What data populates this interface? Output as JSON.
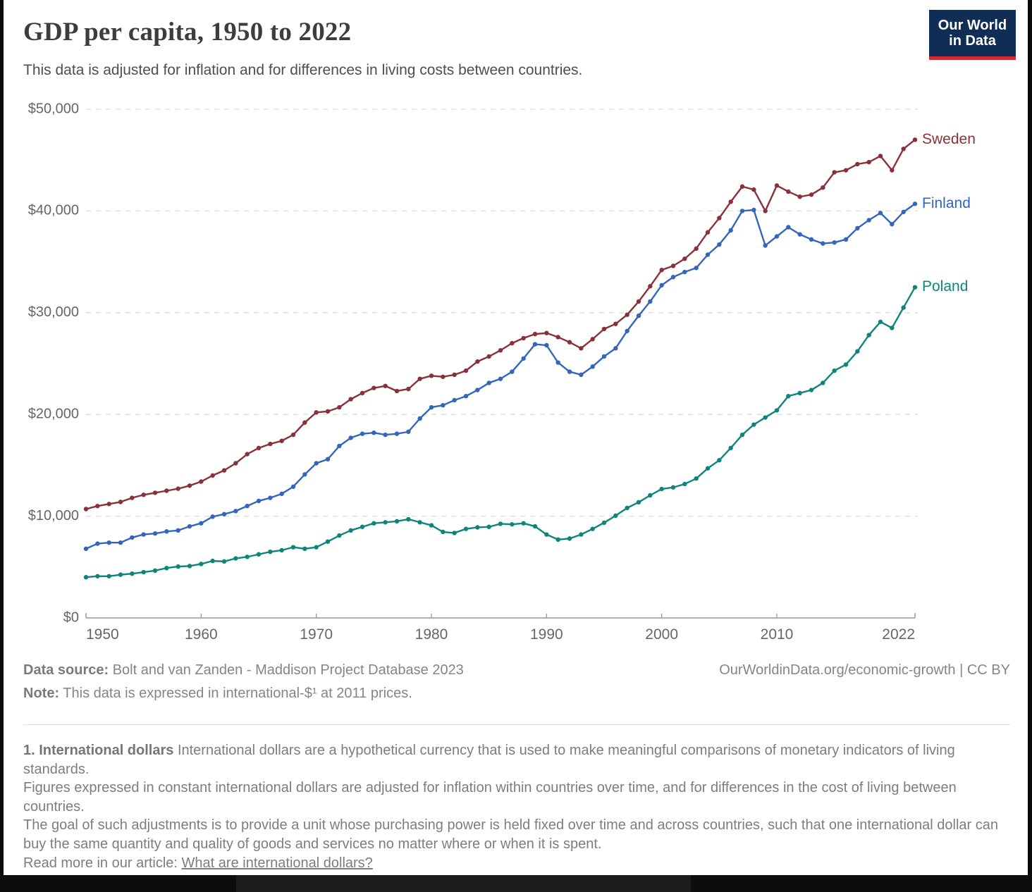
{
  "header": {
    "title": "GDP per capita, 1950 to 2022",
    "subtitle": "This data is adjusted for inflation and for differences in living costs between countries.",
    "logo": {
      "line1": "Our World",
      "line2": "in Data"
    }
  },
  "chart_data": {
    "type": "line",
    "title": "GDP per capita, 1950 to 2022",
    "xlabel": "",
    "ylabel": "",
    "ylim": [
      0,
      50000
    ],
    "xlim": [
      1950,
      2022
    ],
    "grid": "horizontal-dashed",
    "legend_position": "right-end-of-line",
    "x_ticks": [
      {
        "value": 1950,
        "label": "1950"
      },
      {
        "value": 1960,
        "label": "1960"
      },
      {
        "value": 1970,
        "label": "1970"
      },
      {
        "value": 1980,
        "label": "1980"
      },
      {
        "value": 1990,
        "label": "1990"
      },
      {
        "value": 2000,
        "label": "2000"
      },
      {
        "value": 2010,
        "label": "2010"
      },
      {
        "value": 2022,
        "label": "2022"
      }
    ],
    "y_ticks": [
      {
        "value": 0,
        "label": "$0"
      },
      {
        "value": 10000,
        "label": "$10,000"
      },
      {
        "value": 20000,
        "label": "$20,000"
      },
      {
        "value": 30000,
        "label": "$30,000"
      },
      {
        "value": 40000,
        "label": "$40,000"
      },
      {
        "value": 50000,
        "label": "$50,000"
      }
    ],
    "years": [
      1950,
      1951,
      1952,
      1953,
      1954,
      1955,
      1956,
      1957,
      1958,
      1959,
      1960,
      1961,
      1962,
      1963,
      1964,
      1965,
      1966,
      1967,
      1968,
      1969,
      1970,
      1971,
      1972,
      1973,
      1974,
      1975,
      1976,
      1977,
      1978,
      1979,
      1980,
      1981,
      1982,
      1983,
      1984,
      1985,
      1986,
      1987,
      1988,
      1989,
      1990,
      1991,
      1992,
      1993,
      1994,
      1995,
      1996,
      1997,
      1998,
      1999,
      2000,
      2001,
      2002,
      2003,
      2004,
      2005,
      2006,
      2007,
      2008,
      2009,
      2010,
      2011,
      2012,
      2013,
      2014,
      2015,
      2016,
      2017,
      2018,
      2019,
      2020,
      2021,
      2022
    ],
    "series": [
      {
        "name": "Sweden",
        "color": "#8b3039",
        "values": [
          10700,
          11000,
          11200,
          11400,
          11800,
          12100,
          12300,
          12500,
          12700,
          13000,
          13400,
          14000,
          14500,
          15200,
          16100,
          16700,
          17100,
          17400,
          18000,
          19200,
          20200,
          20300,
          20700,
          21500,
          22100,
          22600,
          22800,
          22300,
          22500,
          23500,
          23800,
          23700,
          23900,
          24300,
          25200,
          25700,
          26300,
          27000,
          27500,
          27900,
          28000,
          27600,
          27100,
          26500,
          27400,
          28400,
          28900,
          29800,
          31100,
          32600,
          34200,
          34600,
          35300,
          36300,
          37900,
          39300,
          40900,
          42400,
          42100,
          40000,
          42500,
          41900,
          41400,
          41600,
          42300,
          43800,
          44000,
          44600,
          44800,
          45400,
          44000,
          46100,
          47000
        ]
      },
      {
        "name": "Finland",
        "color": "#3366bb",
        "values": [
          6800,
          7300,
          7400,
          7400,
          7900,
          8200,
          8300,
          8500,
          8600,
          9000,
          9300,
          9950,
          10200,
          10500,
          11000,
          11500,
          11800,
          12200,
          12900,
          14100,
          15200,
          15600,
          16900,
          17700,
          18100,
          18200,
          18000,
          18100,
          18300,
          19600,
          20700,
          20900,
          21400,
          21800,
          22400,
          23100,
          23500,
          24200,
          25500,
          26900,
          26800,
          25100,
          24200,
          23900,
          24700,
          25700,
          26500,
          28200,
          29700,
          31100,
          32700,
          33500,
          34000,
          34400,
          35700,
          36700,
          38100,
          40000,
          40100,
          36600,
          37500,
          38400,
          37700,
          37200,
          36800,
          36900,
          37200,
          38300,
          39100,
          39800,
          38700,
          39900,
          40700
        ]
      },
      {
        "name": "Poland",
        "color": "#0f847c",
        "values": [
          4000,
          4100,
          4100,
          4250,
          4350,
          4500,
          4650,
          4900,
          5050,
          5100,
          5300,
          5600,
          5550,
          5850,
          6000,
          6250,
          6500,
          6650,
          6950,
          6800,
          6950,
          7500,
          8100,
          8600,
          8950,
          9300,
          9400,
          9500,
          9700,
          9400,
          9100,
          8450,
          8350,
          8750,
          8900,
          8950,
          9250,
          9200,
          9300,
          9000,
          8200,
          7700,
          7800,
          8200,
          8750,
          9360,
          10050,
          10810,
          11370,
          12050,
          12670,
          12830,
          13160,
          13700,
          14700,
          15500,
          16700,
          18000,
          19000,
          19700,
          20400,
          21800,
          22100,
          22400,
          23100,
          24300,
          24900,
          26200,
          27800,
          29100,
          28500,
          30500,
          32500
        ]
      }
    ]
  },
  "footer": {
    "source_label": "Data source:",
    "source_text": " Bolt and van Zanden - Maddison Project Database 2023",
    "note_label": "Note:",
    "note_text": " This data is expressed in international-$¹ at 2011 prices.",
    "right_text": "OurWorldinData.org/economic-growth  | CC BY"
  },
  "footnote": {
    "lead": "1. International dollars",
    "p1": " International dollars are a hypothetical currency that is used to make meaningful comparisons of monetary indicators of living standards.",
    "p2": "Figures expressed in constant international dollars are adjusted for inflation within countries over time, and for differences in the cost of living between countries.",
    "p3": "The goal of such adjustments is to provide a unit whose purchasing power is held fixed over time and across countries, such that one international dollar can buy the same quantity and quality of goods and services no matter where or when it is spent.",
    "p4_prefix": "Read more in our article: ",
    "link_text": "What are international dollars?"
  }
}
